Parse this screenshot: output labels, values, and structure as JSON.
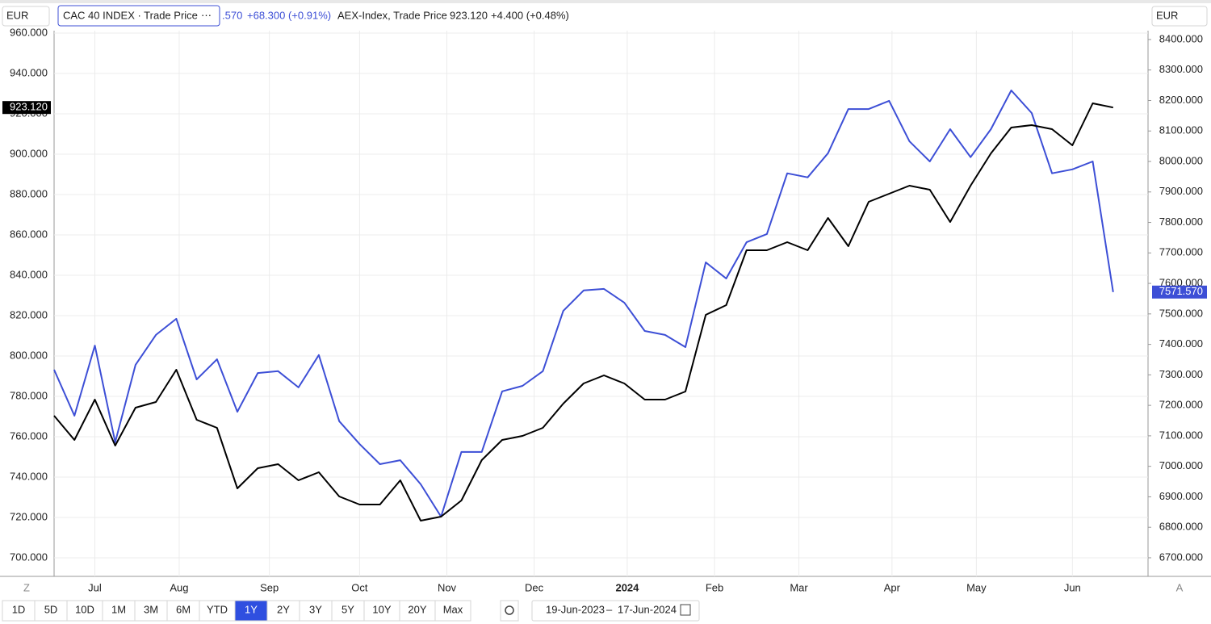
{
  "toolbar": {
    "currency_left": "EUR",
    "currency_right": "EUR",
    "zoom": "Z",
    "auto": "A",
    "ranges": [
      "1D",
      "5D",
      "10D",
      "1M",
      "3M",
      "6M",
      "YTD",
      "1Y",
      "2Y",
      "3Y",
      "5Y",
      "10Y",
      "20Y",
      "Max"
    ],
    "selected": "1Y",
    "date_from": "19-Jun-2023",
    "date_to": "17-Jun-2024"
  },
  "chart_data": {
    "type": "line",
    "grid": true,
    "xlim": [
      "2023-06-19",
      "2024-06-29"
    ],
    "xticks": [
      {
        "value": "2023-07-03",
        "label": "Jul"
      },
      {
        "value": "2023-08-01",
        "label": "Aug"
      },
      {
        "value": "2023-09-01",
        "label": "Sep"
      },
      {
        "value": "2023-10-02",
        "label": "Oct"
      },
      {
        "value": "2023-11-01",
        "label": "Nov"
      },
      {
        "value": "2023-12-01",
        "label": "Dec"
      },
      {
        "value": "2024-01-02",
        "label": "2024"
      },
      {
        "value": "2024-02-01",
        "label": "Feb"
      },
      {
        "value": "2024-03-01",
        "label": "Mar"
      },
      {
        "value": "2024-04-02",
        "label": "Apr"
      },
      {
        "value": "2024-05-01",
        "label": "May"
      },
      {
        "value": "2024-06-03",
        "label": "Jun"
      }
    ],
    "ylim": [
      690.8,
      961.2
    ],
    "yticks": [
      {
        "value": 700,
        "label": "700.000"
      },
      {
        "value": 720,
        "label": "720.000"
      },
      {
        "value": 740,
        "label": "740.000"
      },
      {
        "value": 760,
        "label": "760.000"
      },
      {
        "value": 780,
        "label": "780.000"
      },
      {
        "value": 800,
        "label": "800.000"
      },
      {
        "value": 820,
        "label": "820.000"
      },
      {
        "value": 840,
        "label": "840.000"
      },
      {
        "value": 860,
        "label": "860.000"
      },
      {
        "value": 880,
        "label": "880.000"
      },
      {
        "value": 900,
        "label": "900.000"
      },
      {
        "value": 920,
        "label": "920.000"
      },
      {
        "value": 940,
        "label": "940.000"
      },
      {
        "value": 960,
        "label": "960.000"
      }
    ],
    "y2lim": [
      6639,
      8429
    ],
    "y2ticks": [
      {
        "value": 6700,
        "label": "6700.000"
      },
      {
        "value": 6800,
        "label": "6800.000"
      },
      {
        "value": 6900,
        "label": "6900.000"
      },
      {
        "value": 7000,
        "label": "7000.000"
      },
      {
        "value": 7100,
        "label": "7100.000"
      },
      {
        "value": 7200,
        "label": "7200.000"
      },
      {
        "value": 7300,
        "label": "7300.000"
      },
      {
        "value": 7400,
        "label": "7400.000"
      },
      {
        "value": 7500,
        "label": "7500.000"
      },
      {
        "value": 7600,
        "label": "7600.000"
      },
      {
        "value": 7700,
        "label": "7700.000"
      },
      {
        "value": 7800,
        "label": "7800.000"
      },
      {
        "value": 7900,
        "label": "7900.000"
      },
      {
        "value": 8000,
        "label": "8000.000"
      },
      {
        "value": 8100,
        "label": "8100.000"
      },
      {
        "value": 8200,
        "label": "8200.000"
      },
      {
        "value": 8300,
        "label": "8300.000"
      },
      {
        "value": 8400,
        "label": "8400.000"
      }
    ],
    "x": [
      "2023-06-19",
      "2023-06-26",
      "2023-07-03",
      "2023-07-10",
      "2023-07-17",
      "2023-07-24",
      "2023-07-31",
      "2023-08-07",
      "2023-08-14",
      "2023-08-21",
      "2023-08-28",
      "2023-09-04",
      "2023-09-11",
      "2023-09-18",
      "2023-09-25",
      "2023-10-02",
      "2023-10-09",
      "2023-10-16",
      "2023-10-23",
      "2023-10-30",
      "2023-11-06",
      "2023-11-13",
      "2023-11-20",
      "2023-11-27",
      "2023-12-04",
      "2023-12-11",
      "2023-12-18",
      "2023-12-25",
      "2024-01-01",
      "2024-01-08",
      "2024-01-15",
      "2024-01-22",
      "2024-01-29",
      "2024-02-05",
      "2024-02-12",
      "2024-02-19",
      "2024-02-26",
      "2024-03-04",
      "2024-03-11",
      "2024-03-18",
      "2024-03-25",
      "2024-04-01",
      "2024-04-08",
      "2024-04-15",
      "2024-04-22",
      "2024-04-29",
      "2024-05-06",
      "2024-05-13",
      "2024-05-20",
      "2024-05-27",
      "2024-06-03",
      "2024-06-10",
      "2024-06-17"
    ],
    "series": [
      {
        "name": "CAC 40 INDEX · Trade Price",
        "legend_price": ".570",
        "legend_change": "+68.300 (+0.91%)",
        "last_price_label": "7571.570",
        "color": "#3d4fd6",
        "axis": "y2",
        "values": [
          7317,
          7166,
          7396,
          7079,
          7333,
          7431,
          7484,
          7285,
          7351,
          7179,
          7306,
          7312,
          7259,
          7365,
          7148,
          7073,
          7007,
          7020,
          6941,
          6835,
          7047,
          7047,
          7246,
          7264,
          7312,
          7510,
          7577,
          7582,
          7537,
          7444,
          7431,
          7391,
          7669,
          7616,
          7735,
          7762,
          7961,
          7948,
          8027,
          8172,
          8172,
          8199,
          8066,
          8000,
          8106,
          8014,
          8106,
          8233,
          8159,
          7961,
          7974,
          8000,
          7571.57
        ]
      },
      {
        "name": "AEX-Index, Trade Price",
        "legend_price": "923.120",
        "legend_change": "+4.400 (+0.48%)",
        "last_price_label": "923.120",
        "color": "#000000",
        "values": [
          770.4,
          758.4,
          778.4,
          755.6,
          774.4,
          777.2,
          793.2,
          768.4,
          764.4,
          734.4,
          744.4,
          746.4,
          738.4,
          742.4,
          730.4,
          726.4,
          726.4,
          738.4,
          718.4,
          720.4,
          728.4,
          748.4,
          758.4,
          760.4,
          764.4,
          776.4,
          786.4,
          790.4,
          786.4,
          778.4,
          778.4,
          782.4,
          820.4,
          825.2,
          852.4,
          852.4,
          856.4,
          852.4,
          868.4,
          854.4,
          876.4,
          880.4,
          884.4,
          882.4,
          866.4,
          884.4,
          900.4,
          913.2,
          914.4,
          912.4,
          904.4,
          925.2,
          923.12
        ]
      }
    ]
  }
}
